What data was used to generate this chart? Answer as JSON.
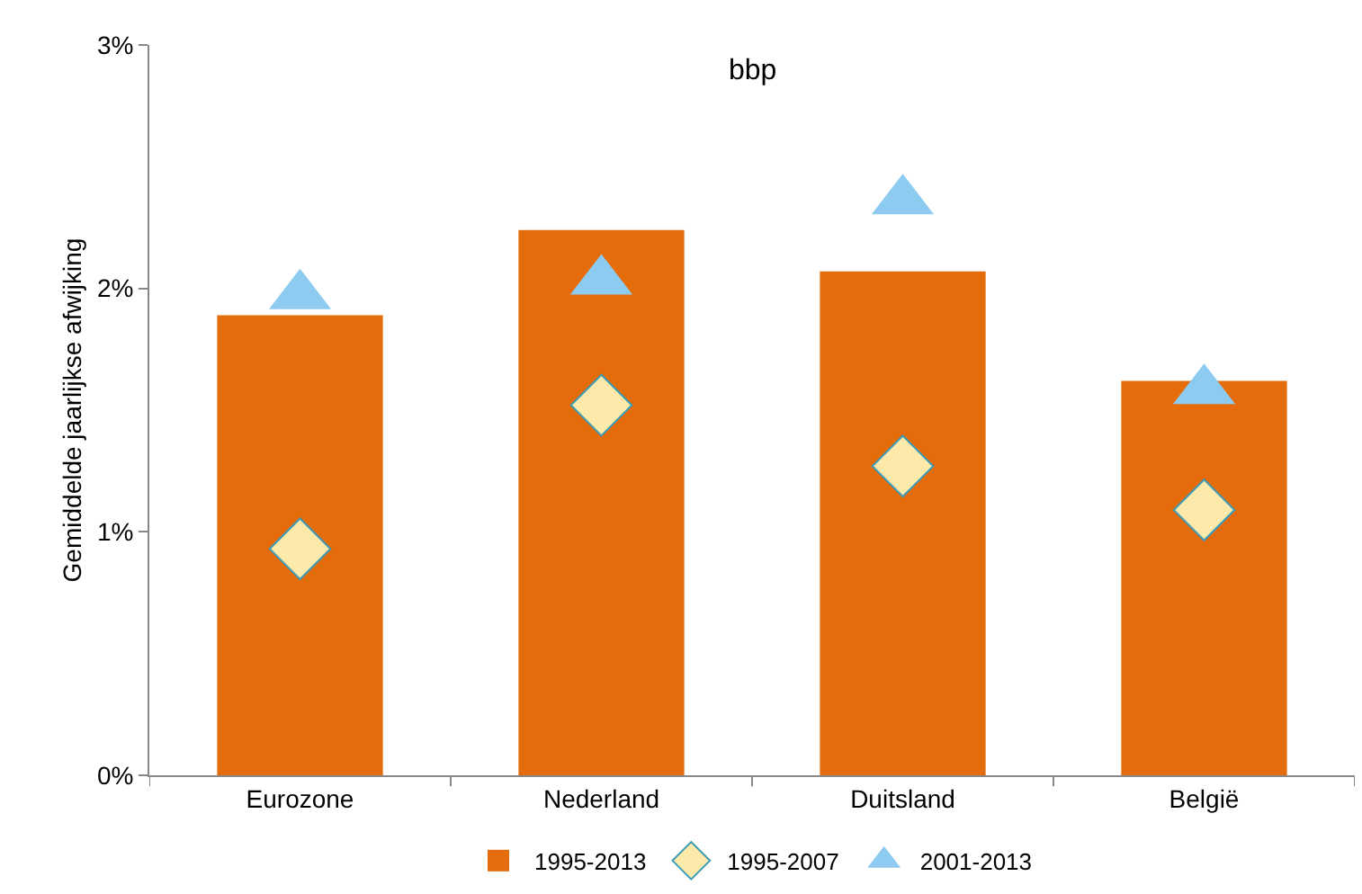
{
  "chart_data": {
    "type": "bar",
    "title": "bbp",
    "ylabel": "Gemiddelde jaarlijkse afwijking",
    "categories": [
      "Eurozone",
      "Nederland",
      "Duitsland",
      "België"
    ],
    "series": [
      {
        "name": "1995-2013",
        "color": "#e46c0a",
        "values": [
          1.89,
          2.24,
          2.07,
          1.62
        ]
      },
      {
        "name": "1995-2007",
        "type": "scatter",
        "marker": "diamond",
        "color": "#fde9a9",
        "values": [
          0.93,
          1.52,
          1.27,
          1.09
        ]
      },
      {
        "name": "2001-2013",
        "type": "scatter",
        "marker": "triangle",
        "color": "#8ecbf0",
        "values": [
          1.97,
          2.03,
          2.36,
          1.58
        ]
      }
    ],
    "ylim": [
      0,
      3
    ],
    "yticks": [
      {
        "value": 0,
        "label": "0%"
      },
      {
        "value": 1,
        "label": "1%"
      },
      {
        "value": 2,
        "label": "2%"
      },
      {
        "value": 3,
        "label": "3%"
      }
    ],
    "grid": false,
    "legend": "bottom"
  }
}
